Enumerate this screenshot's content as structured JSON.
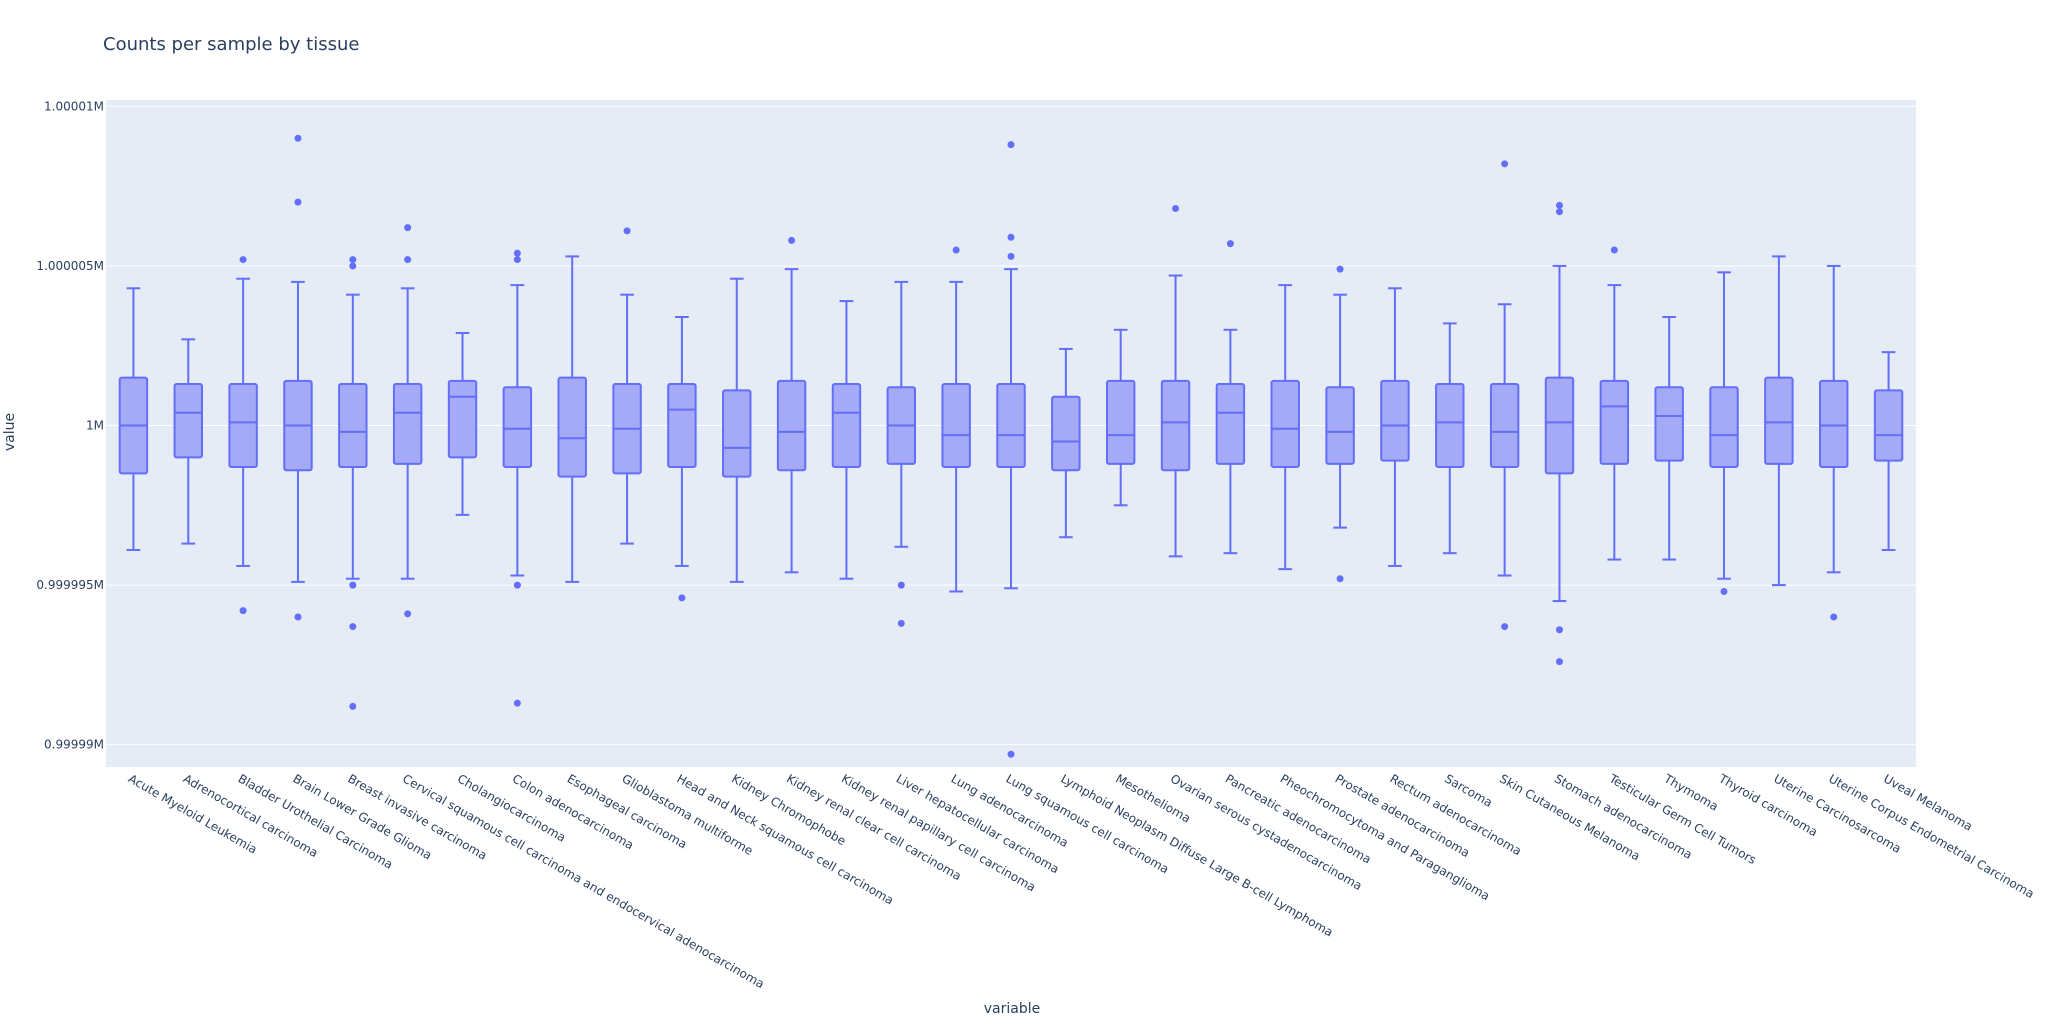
{
  "chart_data": {
    "type": "box",
    "title": "Counts per sample by tissue",
    "xlabel": "variable",
    "ylabel": "value",
    "ylim": [
      999989.3,
      1000010.2
    ],
    "y_ticks": [
      {
        "value": 999990,
        "label": "0.99999M"
      },
      {
        "value": 999995,
        "label": "0.999995M"
      },
      {
        "value": 1000000,
        "label": "1M"
      },
      {
        "value": 1000005,
        "label": "1.000005M"
      },
      {
        "value": 1000010,
        "label": "1.00001M"
      }
    ],
    "grid": true,
    "series_color": "#636efa",
    "box_fill": "#a4aaf5",
    "plot_background": "#e5ecf6",
    "categories": [
      "Acute Myeloid Leukemia",
      "Adrenocortical carcinoma",
      "Bladder Urothelial Carcinoma",
      "Brain Lower Grade Glioma",
      "Breast invasive carcinoma",
      "Cervical squamous cell carcinoma and endocervical adenocarcinoma",
      "Cholangiocarcinoma",
      "Colon adenocarcinoma",
      "Esophageal carcinoma",
      "Glioblastoma multiforme",
      "Head and Neck squamous cell carcinoma",
      "Kidney Chromophobe",
      "Kidney renal clear cell carcinoma",
      "Kidney renal papillary cell carcinoma",
      "Liver hepatocellular carcinoma",
      "Lung adenocarcinoma",
      "Lung squamous cell carcinoma",
      "Lymphoid Neoplasm Diffuse Large B-cell Lymphoma",
      "Mesothelioma",
      "Ovarian serous cystadenocarcinoma",
      "Pancreatic adenocarcinoma",
      "Pheochromocytoma and Paraganglioma",
      "Prostate adenocarcinoma",
      "Rectum adenocarcinoma",
      "Sarcoma",
      "Skin Cutaneous Melanoma",
      "Stomach adenocarcinoma",
      "Testicular Germ Cell Tumors",
      "Thymoma",
      "Thyroid carcinoma",
      "Uterine Carcinosarcoma",
      "Uterine Corpus Endometrial Carcinoma",
      "Uveal Melanoma"
    ],
    "boxes": [
      {
        "lower": 999996.1,
        "q1": 999998.5,
        "median": 1000000.0,
        "q3": 1000001.5,
        "upper": 1000004.3,
        "outliers": []
      },
      {
        "lower": 999996.3,
        "q1": 999999.0,
        "median": 1000000.4,
        "q3": 1000001.3,
        "upper": 1000002.7,
        "outliers": []
      },
      {
        "lower": 999995.6,
        "q1": 999998.7,
        "median": 1000000.1,
        "q3": 1000001.3,
        "upper": 1000004.6,
        "outliers": [
          1000005.2,
          999994.2
        ]
      },
      {
        "lower": 999995.1,
        "q1": 999998.6,
        "median": 1000000.0,
        "q3": 1000001.4,
        "upper": 1000004.5,
        "outliers": [
          1000009.0,
          1000007.0,
          999994.0
        ]
      },
      {
        "lower": 999995.2,
        "q1": 999998.7,
        "median": 999999.8,
        "q3": 1000001.3,
        "upper": 1000004.1,
        "outliers": [
          1000005.2,
          1000005.0,
          999995.0,
          999993.7,
          999991.2
        ]
      },
      {
        "lower": 999995.2,
        "q1": 999998.8,
        "median": 1000000.4,
        "q3": 1000001.3,
        "upper": 1000004.3,
        "outliers": [
          1000006.2,
          1000005.2,
          999994.1
        ]
      },
      {
        "lower": 999997.2,
        "q1": 999999.0,
        "median": 1000000.9,
        "q3": 1000001.4,
        "upper": 1000002.9,
        "outliers": []
      },
      {
        "lower": 999995.3,
        "q1": 999998.7,
        "median": 999999.9,
        "q3": 1000001.2,
        "upper": 1000004.4,
        "outliers": [
          1000005.4,
          1000005.2,
          999995.0,
          999991.3
        ]
      },
      {
        "lower": 999995.1,
        "q1": 999998.4,
        "median": 999999.6,
        "q3": 1000001.5,
        "upper": 1000005.3,
        "outliers": []
      },
      {
        "lower": 999996.3,
        "q1": 999998.5,
        "median": 999999.9,
        "q3": 1000001.3,
        "upper": 1000004.1,
        "outliers": [
          1000006.1
        ]
      },
      {
        "lower": 999995.6,
        "q1": 999998.7,
        "median": 1000000.5,
        "q3": 1000001.3,
        "upper": 1000003.4,
        "outliers": [
          999994.6
        ]
      },
      {
        "lower": 999995.1,
        "q1": 999998.4,
        "median": 999999.3,
        "q3": 1000001.1,
        "upper": 1000004.6,
        "outliers": []
      },
      {
        "lower": 999995.4,
        "q1": 999998.6,
        "median": 999999.8,
        "q3": 1000001.4,
        "upper": 1000004.9,
        "outliers": [
          1000005.8
        ]
      },
      {
        "lower": 999995.2,
        "q1": 999998.7,
        "median": 1000000.4,
        "q3": 1000001.3,
        "upper": 1000003.9,
        "outliers": []
      },
      {
        "lower": 999996.2,
        "q1": 999998.8,
        "median": 1000000.0,
        "q3": 1000001.2,
        "upper": 1000004.5,
        "outliers": [
          999995.0,
          999993.8
        ]
      },
      {
        "lower": 999994.8,
        "q1": 999998.7,
        "median": 999999.7,
        "q3": 1000001.3,
        "upper": 1000004.5,
        "outliers": [
          1000005.5
        ]
      },
      {
        "lower": 999994.9,
        "q1": 999998.7,
        "median": 999999.7,
        "q3": 1000001.3,
        "upper": 1000004.9,
        "outliers": [
          1000008.8,
          1000005.9,
          1000005.3,
          999989.7
        ]
      },
      {
        "lower": 999996.5,
        "q1": 999998.6,
        "median": 999999.5,
        "q3": 1000000.9,
        "upper": 1000002.4,
        "outliers": []
      },
      {
        "lower": 999997.5,
        "q1": 999998.8,
        "median": 999999.7,
        "q3": 1000001.4,
        "upper": 1000003.0,
        "outliers": []
      },
      {
        "lower": 999995.9,
        "q1": 999998.6,
        "median": 1000000.1,
        "q3": 1000001.4,
        "upper": 1000004.7,
        "outliers": [
          1000006.8
        ]
      },
      {
        "lower": 999996.0,
        "q1": 999998.8,
        "median": 1000000.4,
        "q3": 1000001.3,
        "upper": 1000003.0,
        "outliers": [
          1000005.7
        ]
      },
      {
        "lower": 999995.5,
        "q1": 999998.7,
        "median": 999999.9,
        "q3": 1000001.4,
        "upper": 1000004.4,
        "outliers": []
      },
      {
        "lower": 999996.8,
        "q1": 999998.8,
        "median": 999999.8,
        "q3": 1000001.2,
        "upper": 1000004.1,
        "outliers": [
          1000004.9,
          999995.2
        ]
      },
      {
        "lower": 999995.6,
        "q1": 999998.9,
        "median": 1000000.0,
        "q3": 1000001.4,
        "upper": 1000004.3,
        "outliers": []
      },
      {
        "lower": 999996.0,
        "q1": 999998.7,
        "median": 1000000.1,
        "q3": 1000001.3,
        "upper": 1000003.2,
        "outliers": []
      },
      {
        "lower": 999995.3,
        "q1": 999998.7,
        "median": 999999.8,
        "q3": 1000001.3,
        "upper": 1000003.8,
        "outliers": [
          1000008.2,
          999993.7
        ]
      },
      {
        "lower": 999994.5,
        "q1": 999998.5,
        "median": 1000000.1,
        "q3": 1000001.5,
        "upper": 1000005.0,
        "outliers": [
          1000006.9,
          1000006.7,
          999993.6,
          999992.6
        ]
      },
      {
        "lower": 999995.8,
        "q1": 999998.8,
        "median": 1000000.6,
        "q3": 1000001.4,
        "upper": 1000004.4,
        "outliers": [
          1000005.5
        ]
      },
      {
        "lower": 999995.8,
        "q1": 999998.9,
        "median": 1000000.3,
        "q3": 1000001.2,
        "upper": 1000003.4,
        "outliers": []
      },
      {
        "lower": 999995.2,
        "q1": 999998.7,
        "median": 999999.7,
        "q3": 1000001.2,
        "upper": 1000004.8,
        "outliers": [
          999994.8
        ]
      },
      {
        "lower": 999995.0,
        "q1": 999998.8,
        "median": 1000000.1,
        "q3": 1000001.5,
        "upper": 1000005.3,
        "outliers": []
      },
      {
        "lower": 999995.4,
        "q1": 999998.7,
        "median": 1000000.0,
        "q3": 1000001.4,
        "upper": 1000005.0,
        "outliers": [
          999994.0
        ]
      },
      {
        "lower": 999996.1,
        "q1": 999998.9,
        "median": 999999.7,
        "q3": 1000001.1,
        "upper": 1000002.3,
        "outliers": []
      }
    ]
  }
}
